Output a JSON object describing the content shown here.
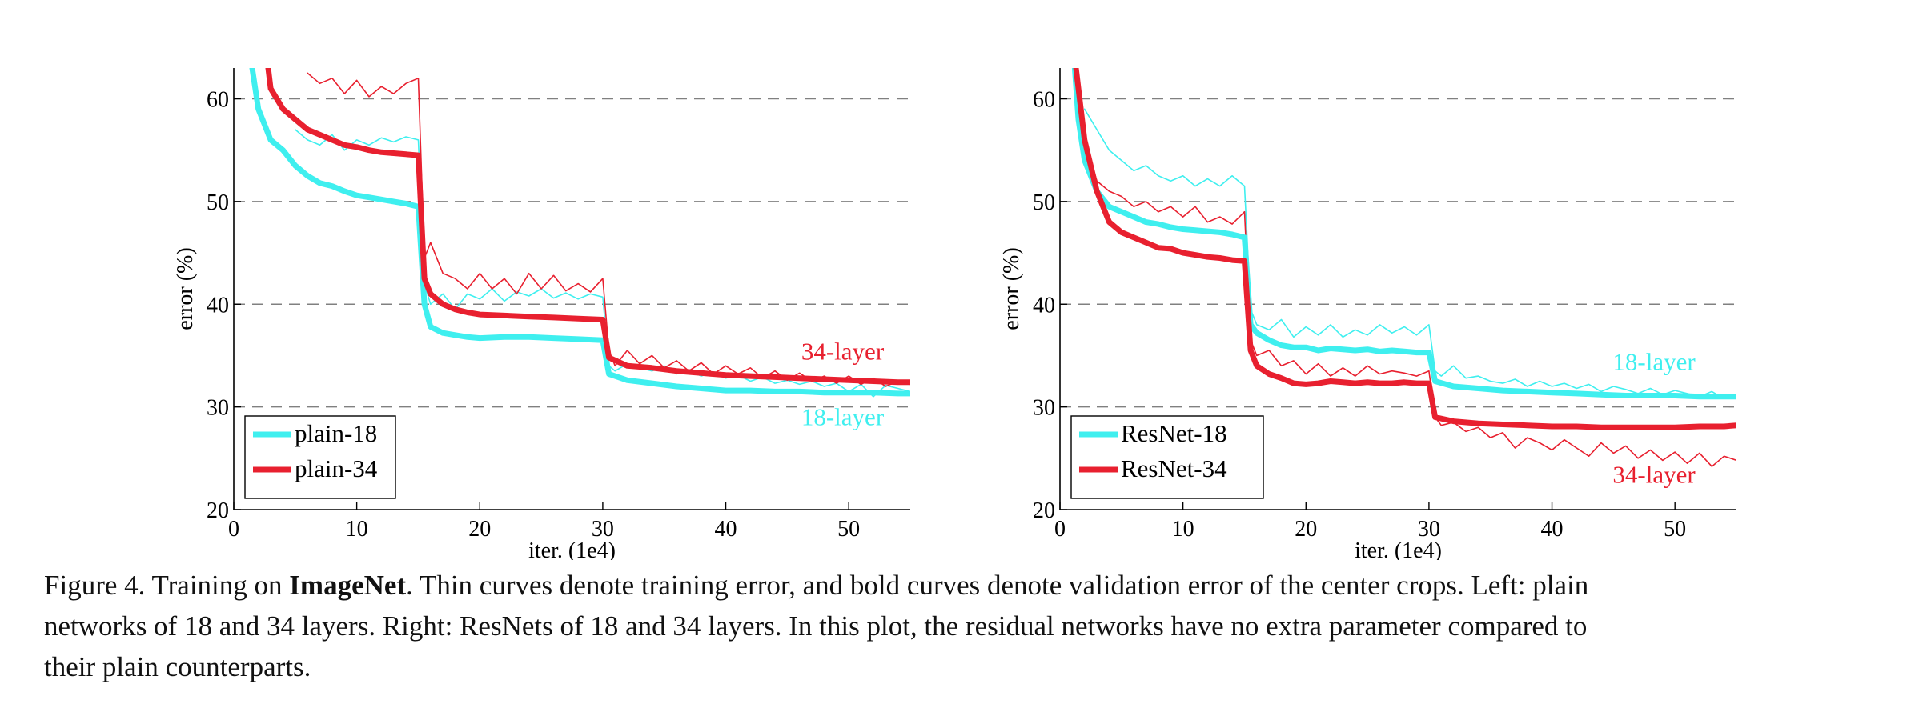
{
  "colors": {
    "cyan": "#3FEFEF",
    "red": "#E8202F",
    "grid": "#808080",
    "axis": "#000000"
  },
  "chart_data": [
    {
      "type": "line",
      "title": "",
      "xlabel": "iter. (1e4)",
      "ylabel": "error (%)",
      "xlim": [
        0,
        55
      ],
      "ylim": [
        20,
        63
      ],
      "xticks": [
        0,
        10,
        20,
        30,
        40,
        50
      ],
      "yticks": [
        20,
        30,
        40,
        50,
        60
      ],
      "grid": "horizontal dashed at 30, 40, 50, 60",
      "legend": {
        "placement": "bottom-left",
        "entries": [
          "plain-18",
          "plain-34"
        ]
      },
      "annotations": [
        {
          "text": "34-layer",
          "color": "red",
          "x": 49.5,
          "y": 34.6
        },
        {
          "text": "18-layer",
          "color": "cyan",
          "x": 49.5,
          "y": 28.2
        }
      ],
      "series": [
        {
          "name": "plain-18",
          "color": "cyan",
          "style": "bold",
          "kind": "validation",
          "x": [
            1.5,
            2,
            3,
            4,
            5,
            6,
            7,
            8,
            9,
            10,
            11,
            12,
            13,
            14,
            15,
            15.5,
            16,
            17,
            18,
            19,
            20,
            22,
            24,
            26,
            28,
            30,
            30.5,
            32,
            34,
            36,
            38,
            40,
            42,
            44,
            46,
            48,
            50,
            52,
            54,
            55
          ],
          "y": [
            63,
            59,
            56,
            55,
            53.5,
            52.5,
            51.8,
            51.5,
            51,
            50.6,
            50.4,
            50.2,
            50,
            49.8,
            49.5,
            40,
            37.8,
            37.2,
            37,
            36.8,
            36.7,
            36.8,
            36.8,
            36.7,
            36.6,
            36.5,
            33.2,
            32.6,
            32.3,
            32,
            31.8,
            31.6,
            31.6,
            31.5,
            31.5,
            31.4,
            31.4,
            31.4,
            31.3,
            31.3
          ]
        },
        {
          "name": "plain-34",
          "color": "red",
          "style": "bold",
          "kind": "validation",
          "x": [
            2.8,
            3,
            4,
            5,
            6,
            7,
            8,
            9,
            10,
            11,
            12,
            13,
            14,
            15,
            15.5,
            16,
            17,
            18,
            19,
            20,
            22,
            24,
            26,
            28,
            30,
            30.5,
            32,
            34,
            36,
            38,
            40,
            42,
            44,
            46,
            48,
            50,
            52,
            54,
            55
          ],
          "y": [
            63,
            61,
            59,
            58,
            57,
            56.5,
            56,
            55.5,
            55.3,
            55,
            54.8,
            54.7,
            54.6,
            54.5,
            42.5,
            41,
            40,
            39.5,
            39.2,
            39,
            38.9,
            38.8,
            38.7,
            38.6,
            38.5,
            34.8,
            34,
            33.8,
            33.5,
            33.3,
            33.1,
            33,
            32.9,
            32.8,
            32.7,
            32.6,
            32.5,
            32.4,
            32.4
          ]
        },
        {
          "name": "plain-18",
          "color": "cyan",
          "style": "thin",
          "kind": "training",
          "x": [
            5,
            6,
            7,
            8,
            9,
            10,
            11,
            12,
            13,
            14,
            15,
            15.5,
            16,
            17,
            18,
            19,
            20,
            21,
            22,
            23,
            24,
            25,
            26,
            27,
            28,
            29,
            30,
            30.5,
            31,
            32,
            33,
            34,
            35,
            36,
            37,
            38,
            39,
            40,
            41,
            42,
            43,
            44,
            45,
            46,
            47,
            48,
            49,
            50,
            51,
            52,
            53,
            54,
            55
          ],
          "y": [
            57,
            56,
            55.5,
            56.5,
            55,
            56,
            55.5,
            56.2,
            55.8,
            56.3,
            56,
            42,
            40,
            41,
            39.5,
            41,
            40.5,
            41.5,
            40.3,
            41.2,
            40.8,
            41.5,
            40.6,
            41.1,
            40.5,
            41,
            40.7,
            34,
            33.5,
            34.2,
            33.8,
            33.5,
            34,
            33.2,
            33.6,
            33,
            33.4,
            32.8,
            33.1,
            32.5,
            32.9,
            32.3,
            32.6,
            32.2,
            32.5,
            32,
            32.3,
            31.5,
            32.2,
            31,
            32.1,
            31.8,
            31.5
          ]
        },
        {
          "name": "plain-34",
          "color": "red",
          "style": "thin",
          "kind": "training",
          "x": [
            6,
            7,
            8,
            9,
            10,
            11,
            12,
            13,
            14,
            15,
            15.5,
            16,
            17,
            18,
            19,
            20,
            21,
            22,
            23,
            24,
            25,
            26,
            27,
            28,
            29,
            30,
            30.5,
            31,
            32,
            33,
            34,
            35,
            36,
            37,
            38,
            39,
            40,
            41,
            42,
            43,
            44,
            45,
            46,
            47,
            48,
            49,
            50,
            51,
            52,
            53,
            54,
            55
          ],
          "y": [
            62.5,
            61.5,
            62,
            60.5,
            61.8,
            60.2,
            61.2,
            60.5,
            61.5,
            62,
            44.5,
            46,
            43,
            42.5,
            41.5,
            43,
            41.5,
            42.5,
            41,
            43,
            41.5,
            42.8,
            41.3,
            42,
            41.2,
            42.5,
            35.5,
            34,
            35.5,
            34.2,
            35,
            33.8,
            34.5,
            33.5,
            34.3,
            33.2,
            34,
            33.2,
            33.8,
            32.8,
            33.5,
            32.6,
            33.3,
            32.5,
            33,
            32.3,
            33,
            32.2,
            32.8,
            32,
            32.5,
            32.2
          ]
        }
      ]
    },
    {
      "type": "line",
      "title": "",
      "xlabel": "iter. (1e4)",
      "ylabel": "error (%)",
      "xlim": [
        0,
        55
      ],
      "ylim": [
        20,
        63
      ],
      "xticks": [
        0,
        10,
        20,
        30,
        40,
        50
      ],
      "yticks": [
        20,
        30,
        40,
        50,
        60
      ],
      "grid": "horizontal dashed at 30, 40, 50, 60",
      "legend": {
        "placement": "bottom-left",
        "entries": [
          "ResNet-18",
          "ResNet-34"
        ]
      },
      "annotations": [
        {
          "text": "18-layer",
          "color": "cyan",
          "x": 48.3,
          "y": 33.6
        },
        {
          "text": "34-layer",
          "color": "red",
          "x": 48.3,
          "y": 22.6
        }
      ],
      "series": [
        {
          "name": "ResNet-18",
          "color": "cyan",
          "style": "bold",
          "kind": "validation",
          "x": [
            1.2,
            1.5,
            2,
            3,
            4,
            5,
            6,
            7,
            8,
            9,
            10,
            11,
            12,
            13,
            14,
            15,
            15.5,
            16,
            17,
            18,
            19,
            20,
            21,
            22,
            23,
            24,
            25,
            26,
            27,
            28,
            29,
            30,
            30.5,
            32,
            34,
            36,
            38,
            40,
            42,
            44,
            46,
            48,
            50,
            52,
            54,
            55
          ],
          "y": [
            63,
            58,
            54,
            51,
            49.5,
            49,
            48.5,
            48,
            47.8,
            47.5,
            47.3,
            47.2,
            47.1,
            47,
            46.8,
            46.5,
            38,
            37.2,
            36.5,
            36,
            35.8,
            35.8,
            35.5,
            35.7,
            35.6,
            35.5,
            35.6,
            35.4,
            35.5,
            35.4,
            35.3,
            35.3,
            32.5,
            32,
            31.8,
            31.6,
            31.5,
            31.4,
            31.3,
            31.2,
            31.1,
            31.1,
            31.1,
            31,
            31,
            31
          ]
        },
        {
          "name": "ResNet-34",
          "color": "red",
          "style": "bold",
          "kind": "validation",
          "x": [
            1.3,
            2,
            3,
            4,
            5,
            6,
            7,
            8,
            9,
            10,
            11,
            12,
            13,
            14,
            15,
            15.5,
            16,
            17,
            18,
            19,
            20,
            21,
            22,
            23,
            24,
            25,
            26,
            27,
            28,
            29,
            30,
            30.5,
            32,
            34,
            36,
            38,
            40,
            42,
            44,
            46,
            48,
            50,
            52,
            54,
            55
          ],
          "y": [
            63,
            56,
            51,
            48,
            47,
            46.5,
            46,
            45.5,
            45.4,
            45,
            44.8,
            44.6,
            44.5,
            44.3,
            44.2,
            35.5,
            34,
            33.2,
            32.8,
            32.3,
            32.2,
            32.3,
            32.5,
            32.4,
            32.3,
            32.4,
            32.3,
            32.3,
            32.4,
            32.3,
            32.3,
            29,
            28.6,
            28.4,
            28.3,
            28.2,
            28.1,
            28.1,
            28,
            28,
            28,
            28,
            28.1,
            28.1,
            28.2
          ]
        },
        {
          "name": "ResNet-18",
          "color": "cyan",
          "style": "thin",
          "kind": "training",
          "x": [
            2,
            3,
            4,
            5,
            6,
            7,
            8,
            9,
            10,
            11,
            12,
            13,
            14,
            15,
            15.5,
            16,
            17,
            18,
            19,
            20,
            21,
            22,
            23,
            24,
            25,
            26,
            27,
            28,
            29,
            30,
            30.5,
            31,
            32,
            33,
            34,
            35,
            36,
            37,
            38,
            39,
            40,
            41,
            42,
            43,
            44,
            45,
            46,
            47,
            48,
            49,
            50,
            51,
            52,
            53,
            54,
            55
          ],
          "y": [
            59,
            57,
            55,
            54,
            53,
            53.5,
            52.5,
            52,
            52.5,
            51.5,
            52.2,
            51.5,
            52.5,
            51.5,
            39.5,
            38,
            37.5,
            38.5,
            36.8,
            37.8,
            37,
            38,
            36.8,
            37.5,
            37,
            38,
            37.2,
            37.8,
            37,
            38,
            33.5,
            33,
            34,
            32.8,
            33,
            32.5,
            32.3,
            32.7,
            32,
            32.5,
            32,
            32.3,
            31.8,
            32.2,
            31.5,
            32,
            31.7,
            31.3,
            31.8,
            31.2,
            31.6,
            31.3,
            31,
            31.5,
            30.8,
            31.2
          ]
        },
        {
          "name": "ResNet-34",
          "color": "red",
          "style": "thin",
          "kind": "training",
          "x": [
            2,
            3,
            4,
            5,
            6,
            7,
            8,
            9,
            10,
            11,
            12,
            13,
            14,
            15,
            15.5,
            16,
            17,
            18,
            19,
            20,
            21,
            22,
            23,
            24,
            25,
            26,
            27,
            28,
            29,
            30,
            30.5,
            31,
            32,
            33,
            34,
            35,
            36,
            37,
            38,
            39,
            40,
            41,
            42,
            43,
            44,
            45,
            46,
            47,
            48,
            49,
            50,
            51,
            52,
            53,
            54,
            55
          ],
          "y": [
            56,
            52,
            51,
            50.5,
            49.5,
            50,
            49,
            49.5,
            48.5,
            49.5,
            48,
            48.5,
            47.8,
            49,
            36.5,
            35,
            35.5,
            34,
            34.5,
            33.2,
            34.2,
            33,
            33.8,
            33,
            34,
            33.2,
            33.5,
            33.3,
            33,
            33.5,
            29,
            28.2,
            28.5,
            27.6,
            28,
            27,
            27.5,
            26,
            27,
            26.5,
            25.8,
            26.8,
            26,
            25.2,
            26.5,
            25.5,
            26.2,
            25,
            25.8,
            24.8,
            25.6,
            24.5,
            25.5,
            24.2,
            25.2,
            24.8
          ]
        }
      ]
    }
  ],
  "caption": {
    "prefix": "Figure 4. Training on ",
    "bold": "ImageNet",
    "line1_rest": ". Thin curves denote training error, and bold curves denote validation error of the center crops. Left: plain",
    "line2": "networks of 18 and 34 layers. Right: ResNets of 18 and 34 layers. In this plot, the residual networks have no extra parameter compared to",
    "line3": "their plain counterparts."
  }
}
